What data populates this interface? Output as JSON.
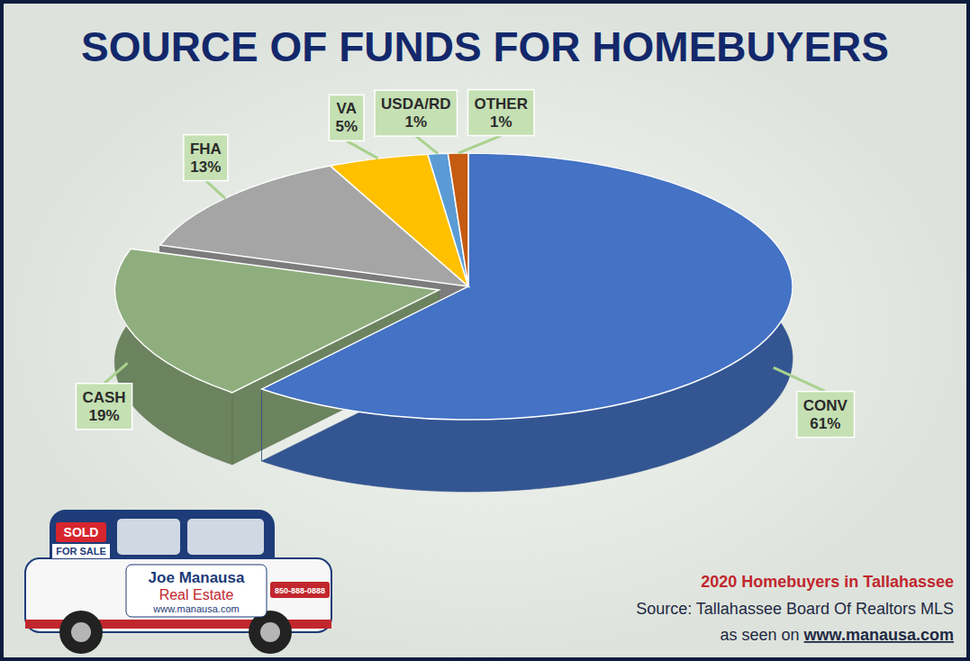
{
  "chart_data": {
    "type": "pie",
    "title": "SOURCE OF FUNDS FOR HOMEBUYERS",
    "categories": [
      "CONV",
      "CASH",
      "FHA",
      "VA",
      "USDA/RD",
      "OTHER"
    ],
    "values": [
      61,
      19,
      13,
      5,
      1,
      1
    ],
    "value_labels": [
      "61%",
      "19%",
      "13%",
      "5%",
      "1%",
      "1%"
    ],
    "colors": [
      "#4472c4",
      "#8fae7e",
      "#a5a5a5",
      "#ffc000",
      "#5b9bd5",
      "#c55a11"
    ],
    "data_labels": true,
    "annotations": [
      "2020 Homebuyers in Tallahassee",
      "Source: Tallahassee Board Of Realtors MLS",
      "as seen on www.manausa.com"
    ]
  },
  "logo": {
    "sign": "SOLD",
    "sign_rider": "FOR SALE",
    "name": "Joe Manausa",
    "business": "Real Estate",
    "url": "www.manausa.com",
    "phone": "850-888-0888"
  }
}
